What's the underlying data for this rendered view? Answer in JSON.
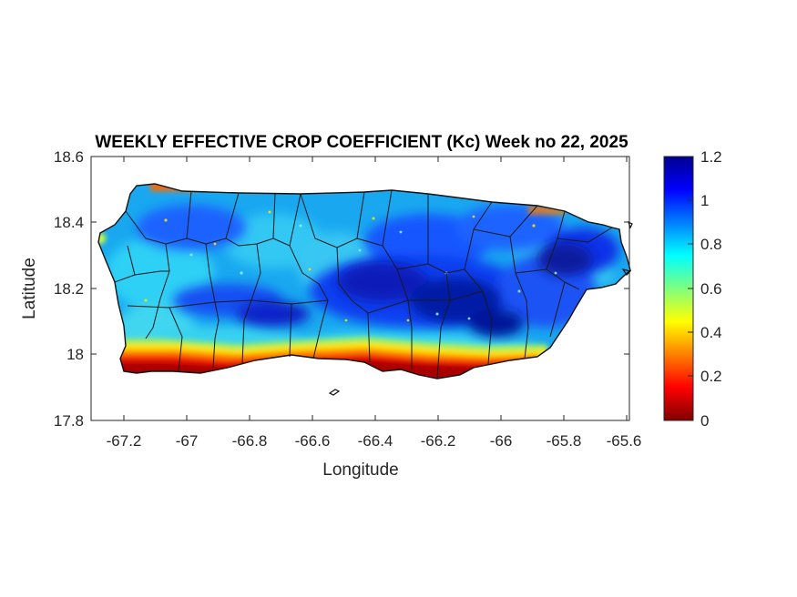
{
  "title": "WEEKLY EFFECTIVE CROP COEFFICIENT (Kc) Week no 22, 2025",
  "xlabel": "Longitude",
  "ylabel": "Latitude",
  "xticks": [
    "-67.2",
    "-67",
    "-66.8",
    "-66.6",
    "-66.4",
    "-66.2",
    "-66",
    "-65.8",
    "-65.6"
  ],
  "yticks": [
    "18.6",
    "18.4",
    "18.2",
    "18",
    "17.8"
  ],
  "colorbar_ticks": [
    "1.2",
    "1",
    "0.8",
    "0.6",
    "0.4",
    "0.2",
    "0"
  ],
  "colormap": {
    "name": "jet",
    "stops": [
      "#7f0000",
      "#ff0000",
      "#ffff00",
      "#00ffff",
      "#0000ff",
      "#00008f"
    ]
  },
  "map": {
    "region": "Puerto Rico",
    "xlim": [
      -67.3,
      -65.58
    ],
    "ylim": [
      17.8,
      18.6
    ],
    "clim": [
      0,
      1.2
    ]
  }
}
